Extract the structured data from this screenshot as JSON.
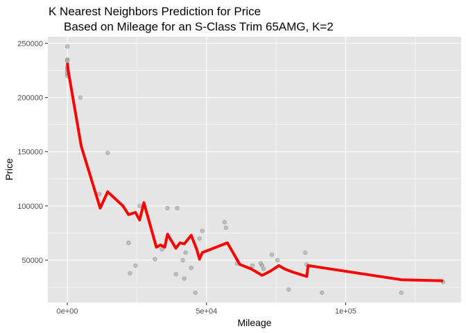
{
  "chart_data": {
    "type": "scatter",
    "title": "K Nearest Neighbors Prediction for Price",
    "subtitle": "Based on Mileage for an S-Class Trim 65AMG, K=2",
    "xlabel": "Mileage",
    "ylabel": "Price",
    "xlim": [
      -7000,
      141500
    ],
    "ylim": [
      11000,
      256000
    ],
    "x_ticks": [
      0,
      50000,
      100000
    ],
    "x_tick_labels": [
      "0e+00",
      "5e+04",
      "1e+05"
    ],
    "y_ticks": [
      50000,
      100000,
      150000,
      200000,
      250000
    ],
    "y_tick_labels": [
      "50000",
      "100000",
      "150000",
      "200000",
      "250000"
    ],
    "grid": true,
    "colors": {
      "panel": "#e5e5e5",
      "grid": "#ffffff",
      "points": "#999999",
      "line": "#ff0000"
    },
    "series": [
      {
        "kind": "points",
        "x": [
          0,
          0,
          0,
          0,
          0,
          0,
          0,
          0,
          4700,
          11500,
          14500,
          22000,
          22500,
          24500,
          26000,
          31500,
          34000,
          36000,
          39500,
          39000,
          41500,
          42000,
          42500,
          44500,
          46000,
          47500,
          48500,
          56500,
          57000,
          61000,
          66500,
          69500,
          70000,
          70500,
          73500,
          75500,
          79500,
          85500,
          86000,
          91500,
          120000,
          135000
        ],
        "y": [
          247000,
          235000,
          234000,
          228000,
          226000,
          224000,
          222000,
          220000,
          200000,
          111000,
          149000,
          66000,
          38000,
          45000,
          100000,
          51000,
          60000,
          98000,
          98000,
          37000,
          50000,
          33000,
          57000,
          43000,
          20000,
          70000,
          77000,
          85000,
          80000,
          47000,
          45000,
          47000,
          45000,
          42000,
          55000,
          50000,
          23000,
          57000,
          46000,
          20000,
          20000,
          30000
        ]
      },
      {
        "kind": "line",
        "x": [
          0,
          300,
          5000,
          11800,
          14500,
          20000,
          22000,
          24500,
          26000,
          27500,
          32000,
          33500,
          35000,
          36000,
          39000,
          40500,
          42000,
          44500,
          46500,
          47500,
          48500,
          57500,
          62000,
          66000,
          70000,
          73000,
          76000,
          78000,
          81000,
          86000,
          86500,
          120000,
          135000
        ],
        "y": [
          232000,
          225000,
          155000,
          98000,
          113000,
          100000,
          92000,
          94000,
          87000,
          103000,
          62000,
          64000,
          62000,
          74000,
          61000,
          66000,
          65000,
          73000,
          60000,
          51000,
          57000,
          66000,
          46000,
          42000,
          36000,
          40000,
          45000,
          42000,
          39000,
          35000,
          45000,
          32000,
          31000
        ]
      }
    ]
  }
}
